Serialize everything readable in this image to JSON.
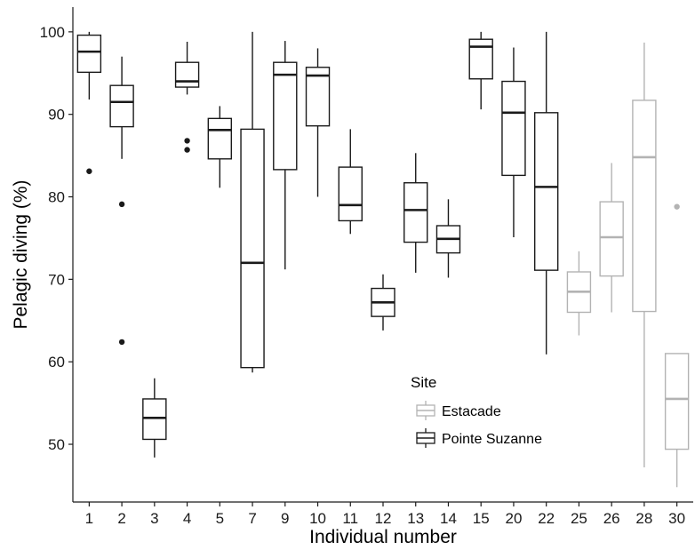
{
  "chart_data": {
    "type": "boxplot",
    "xlabel": "Individual number",
    "ylabel": "Pelagic diving (%)",
    "ylim": [
      43,
      103
    ],
    "yticks": [
      50,
      60,
      70,
      80,
      90,
      100
    ],
    "grid": false,
    "legend": {
      "title": "Site",
      "placement": "center-right",
      "entries": [
        {
          "name": "Estacade",
          "color": "#b3b3b3"
        },
        {
          "name": "Pointe Suzanne",
          "color": "#1a1a1a"
        }
      ]
    },
    "categories": [
      "1",
      "2",
      "3",
      "4",
      "5",
      "7",
      "9",
      "10",
      "11",
      "12",
      "13",
      "14",
      "15",
      "20",
      "22",
      "25",
      "26",
      "28",
      "30"
    ],
    "boxes": [
      {
        "id": "1",
        "site": "Pointe Suzanne",
        "whisker_low": 91.8,
        "q1": 95.1,
        "median": 97.6,
        "q3": 99.6,
        "whisker_high": 100,
        "outliers": [
          83.1
        ]
      },
      {
        "id": "2",
        "site": "Pointe Suzanne",
        "whisker_low": 84.6,
        "q1": 88.5,
        "median": 91.5,
        "q3": 93.5,
        "whisker_high": 97.0,
        "outliers": [
          79.1,
          62.4
        ]
      },
      {
        "id": "3",
        "site": "Pointe Suzanne",
        "whisker_low": 48.4,
        "q1": 50.6,
        "median": 53.2,
        "q3": 55.5,
        "whisker_high": 58.0,
        "outliers": []
      },
      {
        "id": "4",
        "site": "Pointe Suzanne",
        "whisker_low": 92.4,
        "q1": 93.3,
        "median": 94.0,
        "q3": 96.3,
        "whisker_high": 98.8,
        "outliers": [
          86.8,
          85.7
        ]
      },
      {
        "id": "5",
        "site": "Pointe Suzanne",
        "whisker_low": 81.1,
        "q1": 84.6,
        "median": 88.1,
        "q3": 89.5,
        "whisker_high": 91.0,
        "outliers": []
      },
      {
        "id": "7",
        "site": "Pointe Suzanne",
        "whisker_low": 58.7,
        "q1": 59.3,
        "median": 72.0,
        "q3": 88.2,
        "whisker_high": 100,
        "outliers": []
      },
      {
        "id": "9",
        "site": "Pointe Suzanne",
        "whisker_low": 71.2,
        "q1": 83.3,
        "median": 94.8,
        "q3": 96.3,
        "whisker_high": 98.9,
        "outliers": []
      },
      {
        "id": "10",
        "site": "Pointe Suzanne",
        "whisker_low": 80.0,
        "q1": 88.6,
        "median": 94.7,
        "q3": 95.7,
        "whisker_high": 98.0,
        "outliers": []
      },
      {
        "id": "11",
        "site": "Pointe Suzanne",
        "whisker_low": 75.5,
        "q1": 77.1,
        "median": 79.0,
        "q3": 83.6,
        "whisker_high": 88.2,
        "outliers": []
      },
      {
        "id": "12",
        "site": "Pointe Suzanne",
        "whisker_low": 63.8,
        "q1": 65.5,
        "median": 67.2,
        "q3": 68.9,
        "whisker_high": 70.6,
        "outliers": []
      },
      {
        "id": "13",
        "site": "Pointe Suzanne",
        "whisker_low": 70.8,
        "q1": 74.5,
        "median": 78.4,
        "q3": 81.7,
        "whisker_high": 85.3,
        "outliers": []
      },
      {
        "id": "14",
        "site": "Pointe Suzanne",
        "whisker_low": 70.2,
        "q1": 73.2,
        "median": 74.9,
        "q3": 76.5,
        "whisker_high": 79.7,
        "outliers": []
      },
      {
        "id": "15",
        "site": "Pointe Suzanne",
        "whisker_low": 90.6,
        "q1": 94.3,
        "median": 98.2,
        "q3": 99.1,
        "whisker_high": 100,
        "outliers": []
      },
      {
        "id": "20",
        "site": "Pointe Suzanne",
        "whisker_low": 75.1,
        "q1": 82.6,
        "median": 90.2,
        "q3": 94.0,
        "whisker_high": 98.1,
        "outliers": []
      },
      {
        "id": "22",
        "site": "Pointe Suzanne",
        "whisker_low": 60.9,
        "q1": 71.1,
        "median": 81.2,
        "q3": 90.2,
        "whisker_high": 100,
        "outliers": []
      },
      {
        "id": "25",
        "site": "Estacade",
        "whisker_low": 63.2,
        "q1": 66.0,
        "median": 68.5,
        "q3": 70.9,
        "whisker_high": 73.4,
        "outliers": []
      },
      {
        "id": "26",
        "site": "Estacade",
        "whisker_low": 66.0,
        "q1": 70.4,
        "median": 75.1,
        "q3": 79.4,
        "whisker_high": 84.1,
        "outliers": []
      },
      {
        "id": "28",
        "site": "Estacade",
        "whisker_low": 47.2,
        "q1": 66.1,
        "median": 84.8,
        "q3": 91.7,
        "whisker_high": 98.7,
        "outliers": []
      },
      {
        "id": "30",
        "site": "Estacade",
        "whisker_low": 44.8,
        "q1": 49.4,
        "median": 55.5,
        "q3": 61.0,
        "whisker_high": 61.0,
        "outliers": [
          78.8
        ]
      }
    ]
  }
}
